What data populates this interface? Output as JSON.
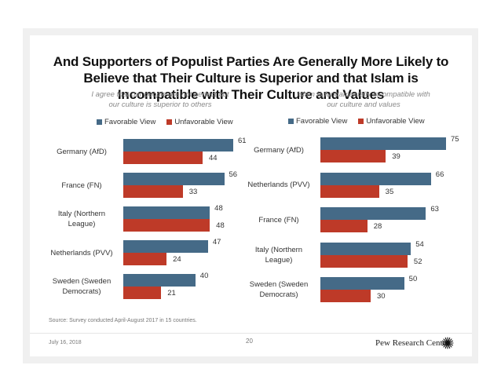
{
  "slide": {
    "title_lines": [
      "And Supporters of Populist Parties Are Generally More Likely to",
      "Believe that Their Culture is Superior and that Islam is",
      "Incompatible with Their Culture and Values"
    ],
    "source": "Source: Survey conducted April-August 2017 in 15 countries.",
    "date": "July 16, 2018",
    "page_number": "20",
    "brand": "Pew Research Center",
    "brand_icon": "pew-sunburst-logo-icon"
  },
  "colors": {
    "favorable": "#456a87",
    "unfavorable": "#be3a28"
  },
  "chart_data": [
    {
      "type": "bar",
      "orientation": "horizontal",
      "title": "I agree that our people are not perfect but our culture is superior to others",
      "subtitle_lines": [
        "I agree that our people are not perfect but",
        "our culture is superior to others"
      ],
      "legend": [
        "Favorable View",
        "Unfavorable View"
      ],
      "legend_position": "top",
      "categories": [
        "Germany (AfD)",
        "France (FN)",
        "Italy (Northern League)",
        "Netherlands (PVV)",
        "Sweden (Sweden Democrats)"
      ],
      "category_lines": [
        [
          "Germany (AfD)"
        ],
        [
          "France (FN)"
        ],
        [
          "Italy (Northern",
          "League)"
        ],
        [
          "Netherlands (PVV)"
        ],
        [
          "Sweden (Sweden",
          "Democrats)"
        ]
      ],
      "series": [
        {
          "name": "Favorable View",
          "values": [
            61,
            56,
            48,
            47,
            40
          ]
        },
        {
          "name": "Unfavorable View",
          "values": [
            44,
            33,
            48,
            24,
            21
          ]
        }
      ],
      "xlabel": "",
      "ylabel": "",
      "xlim": [
        0,
        100
      ],
      "grid": false
    },
    {
      "type": "bar",
      "orientation": "horizontal",
      "title": "Islam is fundamentally incompatible with our culture and values",
      "subtitle_lines": [
        "Islam is fundamentally incompatible with",
        "our culture and values"
      ],
      "legend": [
        "Favorable View",
        "Unfavorable View"
      ],
      "legend_position": "top",
      "categories": [
        "Germany (AfD)",
        "Netherlands (PVV)",
        "France (FN)",
        "Italy (Northern League)",
        "Sweden (Sweden Democrats)"
      ],
      "category_lines": [
        [
          "Germany (AfD)"
        ],
        [
          "Netherlands (PVV)"
        ],
        [
          "France (FN)"
        ],
        [
          "Italy (Northern",
          "League)"
        ],
        [
          "Sweden (Sweden",
          "Democrats)"
        ]
      ],
      "series": [
        {
          "name": "Favorable View",
          "values": [
            75,
            66,
            63,
            54,
            50
          ]
        },
        {
          "name": "Unfavorable View",
          "values": [
            39,
            35,
            28,
            52,
            30
          ]
        }
      ],
      "xlabel": "",
      "ylabel": "",
      "xlim": [
        0,
        100
      ],
      "grid": false
    }
  ]
}
